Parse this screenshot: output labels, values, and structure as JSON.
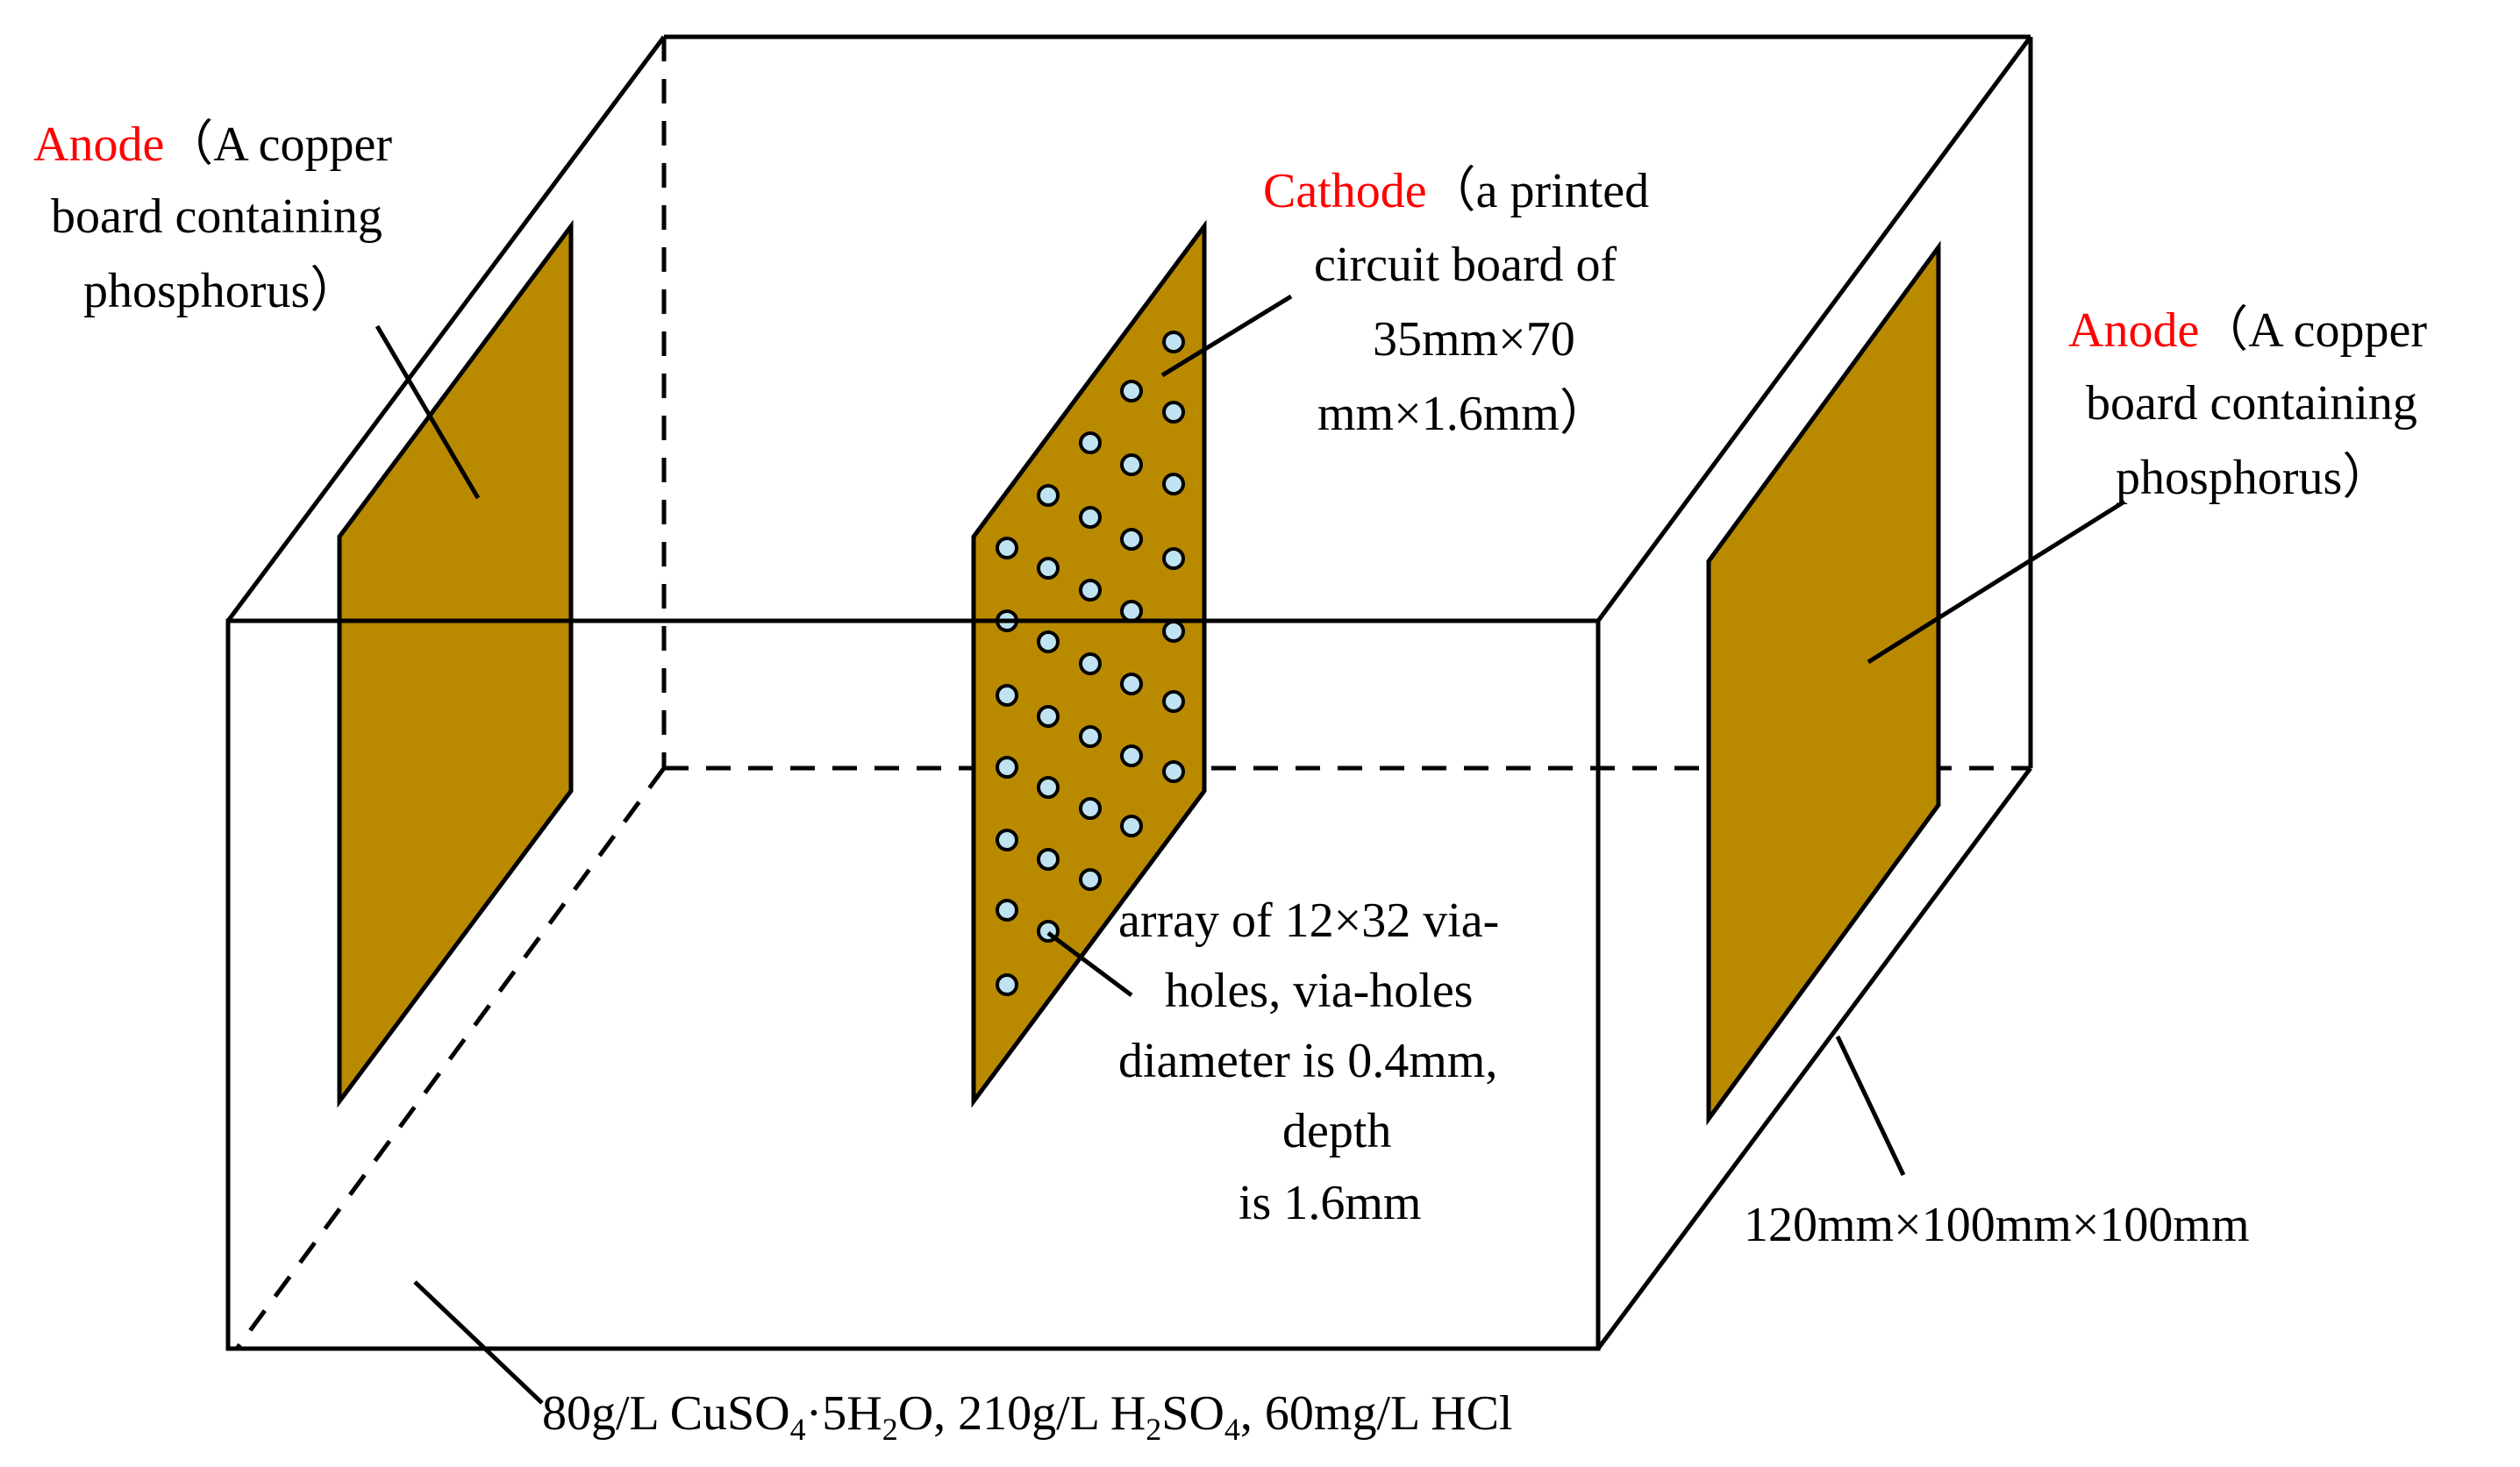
{
  "diagram": {
    "plate_color": "#b98a00",
    "hole_color": "#bfe3f0",
    "accent_color": "#ff0000",
    "left_anode": {
      "word": "Anode",
      "line1_rest": "（A copper",
      "line2": "board containing",
      "line3": "phosphorus）"
    },
    "cathode": {
      "word": "Cathode",
      "line1_rest": "（a printed",
      "line2": "circuit board of",
      "line3": "35mm×70",
      "line4": "mm×1.6mm）"
    },
    "right_anode": {
      "word": "Anode",
      "line1_rest": "（A copper",
      "line2": "board containing",
      "line3": "phosphorus）"
    },
    "via_holes": {
      "line1": "array of 12×32 via-",
      "line2": "holes, via-holes",
      "line3": "diameter is 0.4mm,",
      "line4": "depth",
      "line5": "is 1.6mm"
    },
    "tank_size": "120mm×100mm×100mm",
    "electrolyte": {
      "p1": "80g/L CuSO",
      "s1": "4",
      "p2": "·5H",
      "s2": "2",
      "p3": "O, 210g/L H",
      "s3": "2",
      "p4": "SO",
      "s4": "4",
      "p5": ", 60mg/L HCl"
    }
  }
}
